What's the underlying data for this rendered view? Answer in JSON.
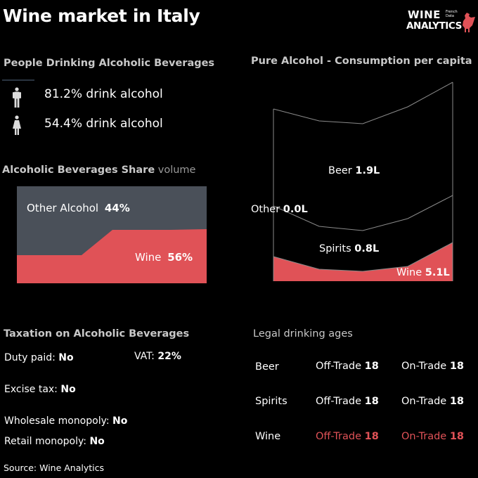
{
  "title": "Wine market in Italy",
  "logo": {
    "line1": "WINE",
    "line2": "ANALYTICS",
    "small": "French Data",
    "icon": "rooster-icon"
  },
  "colors": {
    "wine": "#e05257",
    "other": "#4a5059",
    "background": "#000000",
    "text": "#ffffff"
  },
  "drinking": {
    "heading": "People Drinking Alcoholic Beverages",
    "men": {
      "icon": "man-icon",
      "value": "81.2%",
      "label": "drink alcohol"
    },
    "women": {
      "icon": "woman-icon",
      "value": "54.4%",
      "label": "drink alcohol"
    }
  },
  "share": {
    "heading": "Alcoholic Beverages Share",
    "heading_suffix": "volume",
    "other_label": "Other Alcohol",
    "other_value": "44%",
    "wine_label": "Wine",
    "wine_value": "56%"
  },
  "pure": {
    "heading": "Pure Alcohol - Consumption per capita",
    "beer_label": "Beer",
    "beer_value": "1.9L",
    "other_label": "Other",
    "other_value": "0.0L",
    "spirits_label": "Spirits",
    "spirits_value": "0.8L",
    "wine_label": "Wine",
    "wine_value": "5.1L"
  },
  "chart_data": [
    {
      "type": "area",
      "title": "Alcoholic Beverages Share volume",
      "series": [
        {
          "name": "Wine",
          "values": [
            56
          ]
        },
        {
          "name": "Other Alcohol",
          "values": [
            44
          ]
        }
      ],
      "unit": "%"
    },
    {
      "type": "area",
      "title": "Pure Alcohol - Consumption per capita",
      "series": [
        {
          "name": "Wine",
          "values": [
            5.1
          ]
        },
        {
          "name": "Spirits",
          "values": [
            0.8
          ]
        },
        {
          "name": "Other",
          "values": [
            0.0
          ]
        },
        {
          "name": "Beer",
          "values": [
            1.9
          ]
        }
      ],
      "unit": "L"
    }
  ],
  "taxation": {
    "heading": "Taxation on Alcoholic Beverages",
    "duty": {
      "label": "Duty paid:",
      "value": "No"
    },
    "vat": {
      "label": "VAT:",
      "value": "22%"
    },
    "excise": {
      "label": "Excise tax:",
      "value": "No"
    },
    "wholesale": {
      "label": "Wholesale monopoly:",
      "value": "No"
    },
    "retail": {
      "label": "Retail monopoly:",
      "value": "No"
    }
  },
  "ages": {
    "heading": "Legal drinking ages",
    "off_label": "Off-Trade",
    "on_label": "On-Trade",
    "rows": [
      {
        "name": "Beer",
        "off": "18",
        "on": "18"
      },
      {
        "name": "Spirits",
        "off": "18",
        "on": "18"
      },
      {
        "name": "Wine",
        "off": "18",
        "on": "18"
      }
    ]
  },
  "source": "Source: Wine Analytics"
}
